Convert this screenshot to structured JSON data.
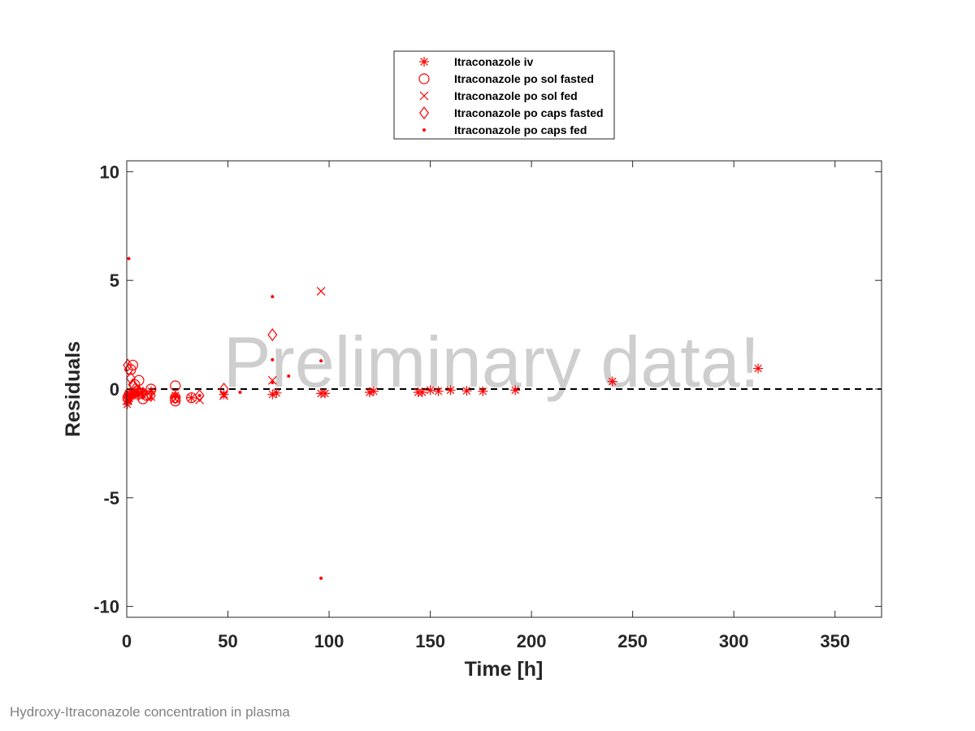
{
  "caption": "Hydroxy-Itraconazole concentration in plasma",
  "chart_data": {
    "type": "scatter",
    "title": "",
    "xlabel": "Time [h]",
    "ylabel": "Residuals",
    "xlim": [
      0,
      373
    ],
    "ylim": [
      -10.5,
      10.5
    ],
    "xticks": [
      0,
      50,
      100,
      150,
      200,
      250,
      300,
      350
    ],
    "yticks": [
      -10,
      -5,
      0,
      5,
      10
    ],
    "grid": false,
    "legend_position": "top-center-outside",
    "watermark": "Preliminary data!",
    "reference_line": {
      "y": 0,
      "style": "dashed",
      "color": "#000000"
    },
    "series": [
      {
        "name": "Itraconazole iv",
        "marker": "asterisk",
        "color": "#ff0000",
        "x": [
          0.25,
          0.5,
          0.75,
          1,
          1.5,
          2,
          3,
          4,
          6,
          8,
          12,
          24,
          32,
          48,
          72,
          74,
          96,
          98,
          120,
          122,
          144,
          146,
          150,
          154,
          160,
          168,
          176,
          192,
          240,
          312
        ],
        "y": [
          -0.7,
          -0.55,
          -0.45,
          -0.35,
          -0.3,
          -0.25,
          -0.2,
          -0.18,
          -0.15,
          -0.12,
          -0.1,
          -0.3,
          -0.4,
          -0.25,
          -0.25,
          -0.18,
          -0.2,
          -0.2,
          -0.15,
          -0.1,
          -0.15,
          -0.15,
          -0.05,
          -0.1,
          -0.05,
          -0.08,
          -0.1,
          -0.05,
          0.35,
          0.95
        ]
      },
      {
        "name": "Itraconazole po sol fasted",
        "marker": "circle",
        "color": "#ff0000",
        "x": [
          0.5,
          1,
          1.5,
          2,
          3,
          4,
          5,
          6,
          7,
          8,
          10,
          12,
          24,
          24,
          24,
          32
        ],
        "y": [
          -0.4,
          -0.3,
          -0.2,
          0.9,
          1.1,
          0.2,
          -0.1,
          0.4,
          -0.2,
          -0.45,
          -0.3,
          0.0,
          0.15,
          -0.4,
          -0.55,
          -0.4
        ]
      },
      {
        "name": "Itraconazole po sol fed",
        "marker": "x",
        "color": "#ff0000",
        "x": [
          0.5,
          1,
          2,
          3,
          4,
          6,
          8,
          12,
          24,
          36,
          48,
          72,
          96
        ],
        "y": [
          -0.5,
          -0.4,
          -0.3,
          -0.2,
          -0.35,
          -0.25,
          -0.3,
          -0.35,
          -0.45,
          -0.5,
          -0.3,
          0.4,
          4.5
        ]
      },
      {
        "name": "Itraconazole po caps fasted",
        "marker": "diamond",
        "color": "#ff0000",
        "x": [
          0.5,
          1,
          2,
          3,
          4,
          6,
          8,
          12,
          24,
          36,
          48,
          72
        ],
        "y": [
          1.1,
          0.9,
          0.5,
          0.2,
          0.0,
          -0.1,
          -0.2,
          -0.3,
          -0.4,
          -0.3,
          0.0,
          2.5
        ]
      },
      {
        "name": "Itraconazole po caps fed",
        "marker": "dot",
        "color": "#ff0000",
        "x": [
          1,
          1,
          2,
          3,
          4,
          6,
          8,
          12,
          24,
          36,
          48,
          56,
          72,
          72,
          72,
          80,
          96,
          96
        ],
        "y": [
          6.0,
          -0.5,
          -0.4,
          -0.3,
          -0.2,
          -0.25,
          -0.3,
          -0.4,
          -0.35,
          -0.3,
          -0.2,
          -0.15,
          4.25,
          1.35,
          0.3,
          0.6,
          1.3,
          -8.7
        ]
      }
    ]
  }
}
